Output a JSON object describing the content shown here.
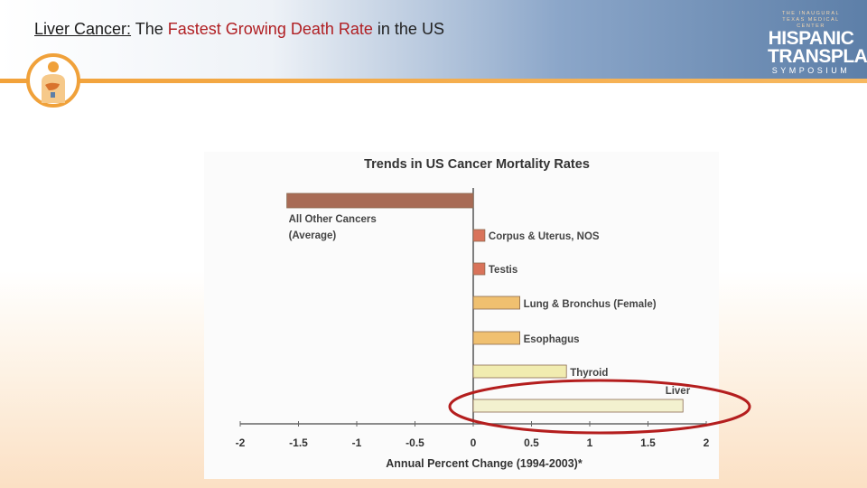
{
  "slide": {
    "title_prefix": "Liver Cancer:",
    "title_plain_1": "The",
    "title_highlight": "Fastest Growing Death Rate",
    "title_plain_2": "in the US"
  },
  "logo": {
    "line1": "THE INAUGURAL",
    "line2": "TEXAS MEDICAL CENTER",
    "word1": "HISPANIC",
    "word2": "TRANSPLANT",
    "word3": "SYMPOSIUM",
    "icon": "liver-body-icon"
  },
  "colors": {
    "title_red": "#b01e22",
    "header_blue": "#5d7fa8",
    "accent_orange": "#f2a23a",
    "highlight_red": "#b41e1e"
  },
  "chart_data": {
    "type": "bar",
    "orientation": "horizontal",
    "title": "Trends in US Cancer Mortality Rates",
    "xlabel": "Annual Percent Change (1994-2003)*",
    "xlim": [
      -2,
      2
    ],
    "ticks": [
      -2,
      -1.5,
      -1,
      -0.5,
      0,
      0.5,
      1,
      1.5,
      2
    ],
    "tick_labels": [
      "-2",
      "-1.5",
      "-1",
      "-0.5",
      "0",
      "0.5",
      "1",
      "1.5",
      "2"
    ],
    "categories": [
      "All Other Cancers (Average)",
      "Corpus & Uterus, NOS",
      "Testis",
      "Lung & Bronchus (Female)",
      "Esophagus",
      "Thyroid",
      "Liver"
    ],
    "values": [
      -1.6,
      0.1,
      0.1,
      0.4,
      0.4,
      0.8,
      1.8
    ],
    "bar_colors": [
      "#a86b55",
      "#d9735a",
      "#d9735a",
      "#f0c070",
      "#f0c070",
      "#f1ecb0",
      "#f3f1cf"
    ],
    "highlighted": "Liver"
  }
}
